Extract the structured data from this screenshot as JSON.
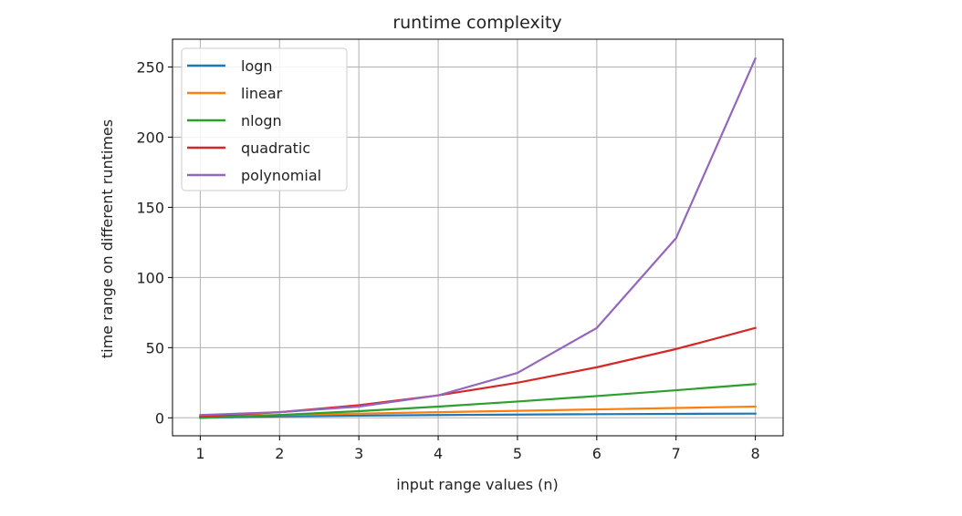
{
  "chart_data": {
    "type": "line",
    "title": "runtime complexity",
    "xlabel": "input range values (n)",
    "ylabel": "time range on different runtimes",
    "x": [
      1,
      2,
      3,
      4,
      5,
      6,
      7,
      8
    ],
    "xticks": [
      "1",
      "2",
      "3",
      "4",
      "5",
      "6",
      "7",
      "8"
    ],
    "yticks": [
      "0",
      "50",
      "100",
      "150",
      "200",
      "250"
    ],
    "xlim": [
      0.65,
      8.35
    ],
    "ylim": [
      -12.8,
      269.8
    ],
    "grid": true,
    "legend_position": "top-left",
    "series": [
      {
        "name": "logn",
        "color": "#1f77b4",
        "values": [
          0,
          1,
          1.58,
          2,
          2.32,
          2.58,
          2.81,
          3
        ]
      },
      {
        "name": "linear",
        "color": "#ff7f0e",
        "values": [
          1,
          2,
          3,
          4,
          5,
          6,
          7,
          8
        ]
      },
      {
        "name": "nlogn",
        "color": "#2ca02c",
        "values": [
          0,
          2,
          4.75,
          8,
          11.61,
          15.51,
          19.65,
          24
        ]
      },
      {
        "name": "quadratic",
        "color": "#d62728",
        "values": [
          1,
          4,
          9,
          16,
          25,
          36,
          49,
          64
        ]
      },
      {
        "name": "polynomial",
        "color": "#9467bd",
        "values": [
          2,
          4,
          8,
          16,
          32,
          64,
          128,
          256
        ]
      }
    ]
  }
}
